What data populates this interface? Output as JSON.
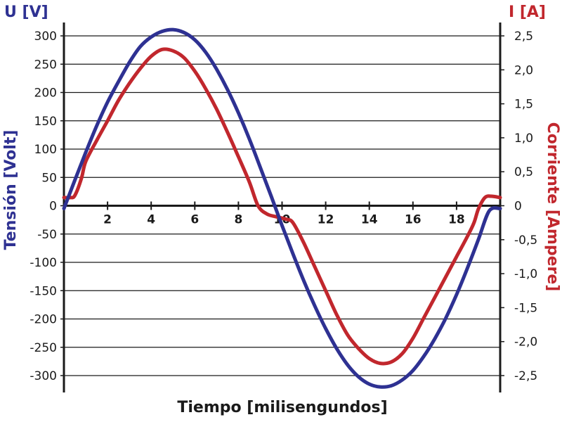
{
  "chart_data": {
    "type": "line",
    "xlabel": "Tiempo [milisengundos]",
    "xlim": [
      0,
      20
    ],
    "x_ticks": [
      2,
      4,
      6,
      8,
      10,
      12,
      14,
      16,
      18
    ],
    "x_tick_labels": [
      "2",
      "4",
      "6",
      "8",
      "10",
      "12",
      "14",
      "16",
      "18"
    ],
    "grid": true,
    "left_axis": {
      "unit_label": "U [V]",
      "title": "Tensión [Volt]",
      "ylim": [
        -300,
        300
      ],
      "ticks": [
        300,
        250,
        200,
        150,
        100,
        50,
        0,
        -50,
        -100,
        -150,
        -200,
        -250,
        -300
      ],
      "tick_labels": [
        "300",
        "250",
        "200",
        "150",
        "100",
        "50",
        "0",
        "-50",
        "-100",
        "-150",
        "-200",
        "-250",
        "-300"
      ],
      "color": "#2e3192"
    },
    "right_axis": {
      "unit_label": "I [A]",
      "title": "Corriente [Ampere]",
      "ylim": [
        -2.5,
        2.5
      ],
      "ticks": [
        2.5,
        2.0,
        1.5,
        1.0,
        0.5,
        0,
        -0.5,
        -1.0,
        -1.5,
        -2.0,
        -2.5
      ],
      "tick_labels": [
        "2,5",
        "2,0",
        "1,5",
        "1,0",
        "0,5",
        "0",
        "-0,5",
        "-1,0",
        "-1,5",
        "-2,0",
        "-2,5"
      ],
      "color": "#c1272d"
    },
    "series": [
      {
        "axis": "left",
        "color": "#2e3192",
        "x": [
          0,
          0.5,
          1,
          1.5,
          2,
          2.5,
          3,
          3.5,
          4,
          4.5,
          5,
          5.5,
          6,
          6.5,
          7,
          7.5,
          8,
          8.5,
          9,
          9.5,
          10,
          10.5,
          11,
          11.5,
          12,
          12.5,
          13,
          13.5,
          14,
          14.5,
          15,
          15.5,
          16,
          16.5,
          17,
          17.5,
          18,
          18.5,
          19,
          19.5,
          20
        ],
        "y": [
          -5,
          45,
          94,
          141,
          183,
          219,
          253,
          281,
          298,
          308,
          311,
          306,
          293,
          271,
          241,
          205,
          164,
          118,
          68,
          17,
          -35,
          -85,
          -133,
          -177,
          -217,
          -252,
          -281,
          -302,
          -315,
          -320,
          -318,
          -308,
          -291,
          -266,
          -235,
          -199,
          -157,
          -110,
          -60,
          -9,
          -5
        ]
      },
      {
        "axis": "right",
        "color": "#c1272d",
        "x": [
          0,
          0.3,
          0.5,
          0.8,
          1,
          1.5,
          2,
          2.5,
          3,
          3.5,
          4,
          4.5,
          5,
          5.5,
          6,
          6.5,
          7,
          7.5,
          8,
          8.5,
          8.9,
          9.3,
          9.7,
          10.2,
          10.5,
          11,
          11.5,
          12,
          12.5,
          13,
          13.5,
          14,
          14.5,
          15,
          15.5,
          16,
          16.5,
          17,
          17.5,
          18,
          18.5,
          18.8,
          19,
          19.3,
          19.6,
          20
        ],
        "y": [
          0.12,
          0.12,
          0.15,
          0.4,
          0.65,
          0.96,
          1.25,
          1.55,
          1.8,
          2.02,
          2.2,
          2.3,
          2.28,
          2.18,
          1.98,
          1.72,
          1.42,
          1.08,
          0.72,
          0.35,
          0.0,
          -0.12,
          -0.16,
          -0.2,
          -0.25,
          -0.55,
          -0.9,
          -1.25,
          -1.6,
          -1.9,
          -2.1,
          -2.25,
          -2.32,
          -2.3,
          -2.18,
          -1.95,
          -1.65,
          -1.35,
          -1.05,
          -0.75,
          -0.45,
          -0.25,
          -0.05,
          0.12,
          0.14,
          0.12
        ]
      }
    ]
  }
}
